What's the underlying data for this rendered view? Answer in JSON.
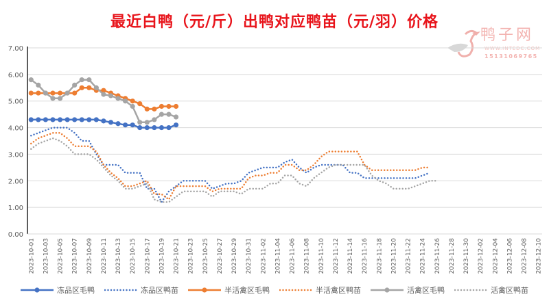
{
  "chart_data": {
    "type": "line",
    "title": "最近白鸭（元/斤）出鸭对应鸭苗（元/羽）价格",
    "xlabel": "",
    "ylabel": "",
    "ylim": [
      0,
      7
    ],
    "y_ticks": [
      "0.00",
      "1.00",
      "2.00",
      "3.00",
      "4.00",
      "5.00",
      "6.00",
      "7.00"
    ],
    "grid": true,
    "legend_position": "bottom",
    "x_start": "2023-10-01",
    "x_end": "2023-12-10",
    "x_tick_labels": [
      "2023-10-01",
      "2023-10-03",
      "2023-10-05",
      "2023-10-07",
      "2023-10-09",
      "2023-10-11",
      "2023-10-13",
      "2023-10-15",
      "2023-10-17",
      "2023-10-19",
      "2023-10-21",
      "2023-10-23",
      "2023-10-25",
      "2023-10-27",
      "2023-10-29",
      "2023-10-31",
      "2023-11-02",
      "2023-11-04",
      "2023-11-06",
      "2023-11-08",
      "2023-11-10",
      "2023-11-12",
      "2023-11-14",
      "2023-11-16",
      "2023-11-18",
      "2023-11-20",
      "2023-11-22",
      "2023-11-24",
      "2023-11-26",
      "2023-11-28",
      "2023-11-30",
      "2023-12-02",
      "2023-12-04",
      "2023-12-06",
      "2023-12-08",
      "2023-12-10"
    ],
    "series": [
      {
        "name": "冻品区毛鸭",
        "color": "#4472c4",
        "style": "solid",
        "values": [
          4.3,
          4.3,
          4.3,
          4.3,
          4.3,
          4.3,
          4.3,
          4.3,
          4.3,
          4.3,
          4.25,
          4.2,
          4.15,
          4.1,
          4.1,
          4.0,
          4.0,
          4.0,
          4.0,
          4.0,
          4.1
        ]
      },
      {
        "name": "冻品区鸭苗",
        "color": "#4472c4",
        "style": "dotted",
        "values": [
          3.7,
          3.8,
          3.9,
          4.0,
          4.0,
          4.0,
          3.8,
          3.5,
          3.5,
          3.0,
          2.6,
          2.6,
          2.6,
          2.3,
          2.3,
          2.3,
          1.7,
          1.7,
          1.2,
          1.6,
          1.8,
          2.0,
          2.0,
          2.0,
          2.0,
          1.7,
          1.8,
          1.9,
          1.9,
          2.0,
          2.3,
          2.4,
          2.5,
          2.5,
          2.5,
          2.7,
          2.8,
          2.5,
          2.3,
          2.5,
          2.6,
          2.6,
          2.6,
          2.6,
          2.3,
          2.3,
          2.1,
          2.1,
          2.1,
          2.1,
          2.1,
          2.1,
          2.1,
          2.1,
          2.2,
          2.3
        ]
      },
      {
        "name": "半活禽区毛鸭",
        "color": "#ed7d31",
        "style": "solid",
        "values": [
          5.3,
          5.3,
          5.3,
          5.3,
          5.3,
          5.3,
          5.3,
          5.5,
          5.5,
          5.4,
          5.4,
          5.3,
          5.2,
          5.1,
          5.0,
          4.9,
          4.7,
          4.7,
          4.8,
          4.8,
          4.8
        ]
      },
      {
        "name": "半活禽区鸭苗",
        "color": "#ed7d31",
        "style": "dotted",
        "values": [
          3.4,
          3.6,
          3.7,
          3.8,
          3.8,
          3.6,
          3.3,
          3.3,
          3.3,
          3.1,
          2.6,
          2.3,
          2.1,
          1.8,
          1.8,
          1.9,
          2.0,
          1.5,
          1.5,
          1.3,
          1.8,
          1.8,
          1.8,
          1.8,
          1.8,
          1.6,
          1.7,
          1.7,
          1.7,
          1.7,
          2.1,
          2.2,
          2.2,
          2.3,
          2.3,
          2.6,
          2.6,
          2.4,
          2.4,
          2.6,
          2.9,
          3.1,
          3.1,
          3.1,
          3.1,
          3.1,
          2.6,
          2.4,
          2.4,
          2.4,
          2.4,
          2.4,
          2.4,
          2.4,
          2.5,
          2.5
        ]
      },
      {
        "name": "活禽区毛鸭",
        "color": "#a5a5a5",
        "style": "solid",
        "values": [
          5.8,
          5.6,
          5.3,
          5.1,
          5.1,
          5.3,
          5.6,
          5.8,
          5.8,
          5.5,
          5.25,
          5.2,
          5.1,
          5.0,
          4.8,
          4.2,
          4.2,
          4.3,
          4.5,
          4.5,
          4.4
        ]
      },
      {
        "name": "活禽区鸭苗",
        "color": "#a5a5a5",
        "style": "dotted",
        "values": [
          3.2,
          3.4,
          3.5,
          3.6,
          3.5,
          3.3,
          3.0,
          3.0,
          3.0,
          2.8,
          2.5,
          2.2,
          2.0,
          1.7,
          1.7,
          1.8,
          1.9,
          1.3,
          1.2,
          1.2,
          1.4,
          1.6,
          1.6,
          1.6,
          1.6,
          1.4,
          1.6,
          1.6,
          1.6,
          1.5,
          1.7,
          1.7,
          1.7,
          1.9,
          1.9,
          2.2,
          2.2,
          1.9,
          1.8,
          2.1,
          2.3,
          2.5,
          2.6,
          2.6,
          2.6,
          2.6,
          2.6,
          2.2,
          2.0,
          1.9,
          1.7,
          1.7,
          1.7,
          1.8,
          1.9,
          2.0,
          2.0
        ]
      }
    ]
  },
  "watermark": {
    "name": "鸭子网",
    "url": "WWW.INTEDC.COM",
    "phone": "15131069765"
  }
}
